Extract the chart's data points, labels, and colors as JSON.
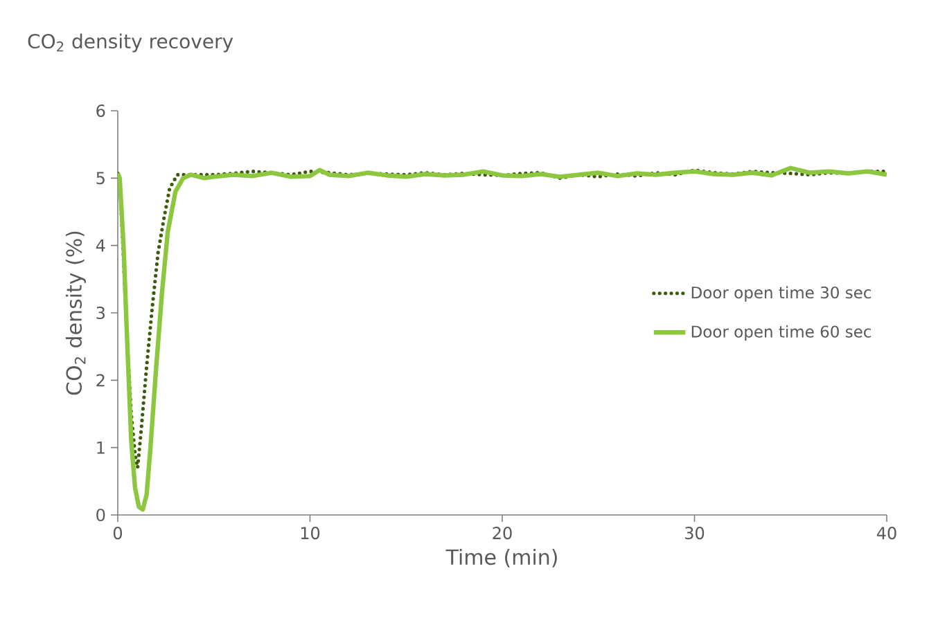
{
  "chart_data": {
    "type": "line",
    "title": "CO$_{2}$ density recovery",
    "xlabel": "Time (min)",
    "ylabel": "CO$_{2}$ density (%)",
    "xlim": [
      0,
      40
    ],
    "ylim": [
      0,
      6
    ],
    "xticks": [
      0,
      10,
      20,
      30,
      40
    ],
    "yticks": [
      0,
      1,
      2,
      3,
      4,
      5,
      6
    ],
    "legend": "right",
    "series": [
      {
        "name": "Door open time 30 sec",
        "color": "#3d5a0f",
        "line_style": "dotted",
        "x": [
          0,
          0.1,
          0.3,
          0.5,
          0.7,
          0.9,
          1.03,
          1.2,
          1.5,
          1.8,
          2.1,
          2.4,
          2.7,
          3.1,
          3.5,
          4,
          5,
          6,
          7,
          8,
          9,
          10,
          11,
          12,
          13,
          14,
          15,
          16,
          17,
          18,
          19,
          20,
          21,
          22,
          23,
          24,
          25,
          26,
          27,
          28,
          29,
          30,
          31,
          32,
          33,
          34,
          35,
          36,
          37,
          38,
          39,
          40
        ],
        "values": [
          5.07,
          5.0,
          3.8,
          2.5,
          1.5,
          0.9,
          0.7,
          1.2,
          2.2,
          3.1,
          3.9,
          4.4,
          4.85,
          5.05,
          5.05,
          5.05,
          5.05,
          5.07,
          5.1,
          5.08,
          5.05,
          5.1,
          5.08,
          5.05,
          5.07,
          5.06,
          5.05,
          5.08,
          5.05,
          5.07,
          5.05,
          5.04,
          5.07,
          5.08,
          5.0,
          5.05,
          5.02,
          5.06,
          5.03,
          5.08,
          5.05,
          5.12,
          5.08,
          5.06,
          5.1,
          5.08,
          5.07,
          5.05,
          5.08,
          5.07,
          5.1,
          5.1
        ]
      },
      {
        "name": "Door open time 60 sec",
        "color": "#8dc63f",
        "line_style": "solid",
        "x": [
          0,
          0.1,
          0.3,
          0.5,
          0.7,
          0.9,
          1.1,
          1.3,
          1.5,
          1.7,
          2.0,
          2.3,
          2.6,
          3.0,
          3.4,
          3.8,
          4.5,
          5,
          6,
          7,
          8,
          9,
          10,
          10.5,
          11,
          12,
          13,
          14,
          15,
          16,
          17,
          18,
          19,
          20,
          21,
          22,
          23,
          24,
          25,
          26,
          27,
          28,
          29,
          30,
          31,
          32,
          33,
          34,
          35,
          36,
          37,
          38,
          39,
          40
        ],
        "values": [
          5.07,
          5.0,
          4.0,
          2.5,
          1.1,
          0.4,
          0.12,
          0.08,
          0.3,
          1.0,
          2.2,
          3.3,
          4.2,
          4.8,
          5.0,
          5.05,
          5.0,
          5.02,
          5.05,
          5.03,
          5.08,
          5.02,
          5.03,
          5.12,
          5.05,
          5.03,
          5.08,
          5.04,
          5.02,
          5.06,
          5.04,
          5.05,
          5.1,
          5.04,
          5.03,
          5.06,
          5.02,
          5.05,
          5.08,
          5.03,
          5.07,
          5.05,
          5.08,
          5.1,
          5.06,
          5.05,
          5.08,
          5.04,
          5.15,
          5.08,
          5.1,
          5.07,
          5.1,
          5.05
        ]
      }
    ]
  }
}
